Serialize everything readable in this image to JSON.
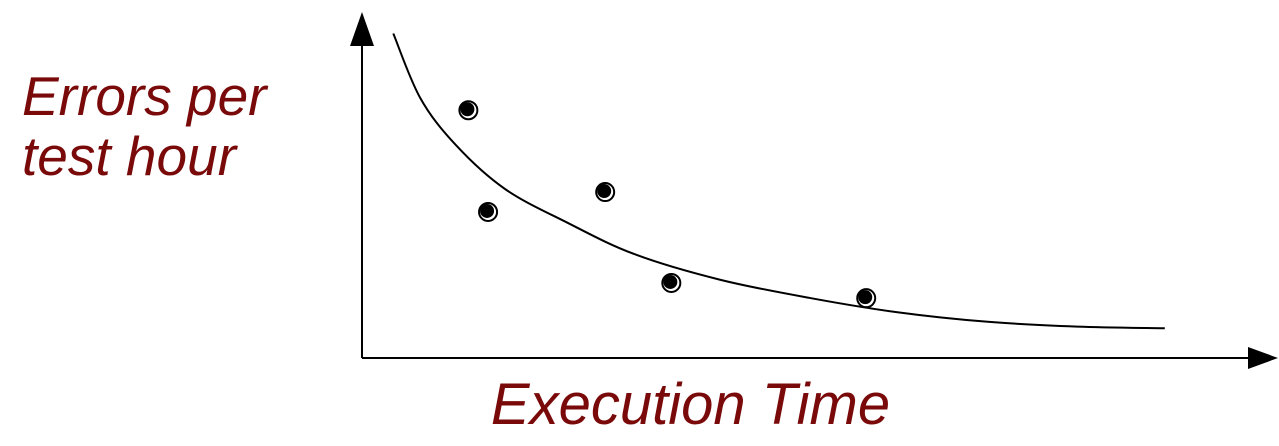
{
  "chart_data": {
    "type": "scatter",
    "title": "",
    "ylabel_lines": [
      "Errors per",
      "test hour"
    ],
    "xlabel": "Execution Time",
    "xlim": [
      0,
      100
    ],
    "ylim": [
      0,
      100
    ],
    "grid": false,
    "axis_ticks": false,
    "colors": {
      "label": "#7a0a0a",
      "axis": "#000000",
      "points": "#000000",
      "curve": "#000000"
    },
    "points": [
      {
        "x": 11.9,
        "y": 73.3
      },
      {
        "x": 14.1,
        "y": 43.2
      },
      {
        "x": 27.2,
        "y": 49.1
      },
      {
        "x": 34.6,
        "y": 22.2
      },
      {
        "x": 56.4,
        "y": 17.7
      }
    ],
    "trend_curve": [
      {
        "x": 3.5,
        "y": 96.0
      },
      {
        "x": 6.5,
        "y": 77.0
      },
      {
        "x": 10.5,
        "y": 63.0
      },
      {
        "x": 16.0,
        "y": 50.0
      },
      {
        "x": 23.0,
        "y": 40.0
      },
      {
        "x": 30.5,
        "y": 30.7
      },
      {
        "x": 40.0,
        "y": 23.2
      },
      {
        "x": 50.0,
        "y": 17.8
      },
      {
        "x": 60.0,
        "y": 13.5
      },
      {
        "x": 70.0,
        "y": 10.7
      },
      {
        "x": 80.0,
        "y": 9.3
      },
      {
        "x": 89.8,
        "y": 8.8
      }
    ]
  }
}
